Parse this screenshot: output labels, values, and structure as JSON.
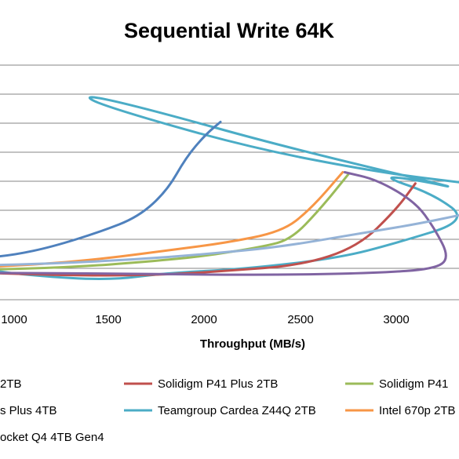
{
  "chart_data": {
    "type": "line",
    "title": "Sequential Write 64K",
    "xlabel": "Throughput (MB/s)",
    "ylabel": "",
    "x_ticks": [
      1000,
      1500,
      2000,
      2500,
      3000
    ],
    "xlim": [
      830,
      3380
    ],
    "ylim": [
      0,
      600
    ],
    "gridlines_y": [
      100,
      200,
      300,
      400,
      500
    ],
    "grid": true,
    "legend_position": "bottom",
    "series": [
      {
        "name": "Teamgroup Cardea Z44Q 2TB",
        "color": "#4bacc6",
        "points": [
          [
            830,
            40
          ],
          [
            1100,
            22
          ],
          [
            1500,
            10
          ],
          [
            1800,
            30
          ],
          [
            2200,
            40
          ],
          [
            2700,
            70
          ],
          [
            3000,
            110
          ],
          [
            3380,
            170
          ],
          [
            3200,
            240
          ],
          [
            2920,
            290
          ],
          [
            3100,
            280
          ],
          [
            3380,
            250
          ],
          [
            2400,
            370
          ],
          [
            1700,
            470
          ],
          [
            1360,
            510
          ],
          [
            1450,
            480
          ],
          [
            2200,
            370
          ],
          [
            2900,
            300
          ],
          [
            3380,
            270
          ]
        ]
      },
      {
        "name": "Solidigm P41 Plus 2TB",
        "color": "#c0504d",
        "points": [
          [
            830,
            30
          ],
          [
            1400,
            22
          ],
          [
            1800,
            25
          ],
          [
            2100,
            35
          ],
          [
            2500,
            50
          ],
          [
            2800,
            100
          ],
          [
            3000,
            200
          ],
          [
            3100,
            270
          ]
        ]
      },
      {
        "name": "Solidigm P41",
        "color": "#9bbb59",
        "points": [
          [
            830,
            38
          ],
          [
            1300,
            45
          ],
          [
            1700,
            60
          ],
          [
            2000,
            75
          ],
          [
            2300,
            100
          ],
          [
            2450,
            120
          ],
          [
            2600,
            200
          ],
          [
            2750,
            295
          ]
        ]
      },
      {
        "name": "Intel 670p 2TB",
        "color": "#f79646",
        "points": [
          [
            830,
            45
          ],
          [
            1200,
            55
          ],
          [
            1500,
            70
          ],
          [
            1800,
            90
          ],
          [
            2100,
            110
          ],
          [
            2400,
            140
          ],
          [
            2550,
            200
          ],
          [
            2720,
            300
          ]
        ]
      },
      {
        "name": "",
        "color": "#4f81bd",
        "points": [
          [
            830,
            70
          ],
          [
            1000,
            78
          ],
          [
            1200,
            100
          ],
          [
            1450,
            140
          ],
          [
            1650,
            180
          ],
          [
            1800,
            250
          ],
          [
            1900,
            340
          ],
          [
            2000,
            400
          ],
          [
            2080,
            435
          ]
        ]
      },
      {
        "name": "",
        "color": "#8064a2",
        "points": [
          [
            2730,
            300
          ],
          [
            2900,
            280
          ],
          [
            3100,
            220
          ],
          [
            3200,
            150
          ],
          [
            3280,
            70
          ],
          [
            3200,
            40
          ],
          [
            2900,
            30
          ],
          [
            2500,
            25
          ],
          [
            2000,
            25
          ],
          [
            1600,
            28
          ],
          [
            830,
            30
          ]
        ]
      },
      {
        "name": "",
        "color": "#95b3d7",
        "points": [
          [
            830,
            50
          ],
          [
            1200,
            55
          ],
          [
            1600,
            65
          ],
          [
            2000,
            80
          ],
          [
            2400,
            100
          ],
          [
            2800,
            135
          ],
          [
            3100,
            160
          ],
          [
            3380,
            190
          ]
        ]
      }
    ],
    "legend_entries": [
      {
        "text": "2TB",
        "color": "#4f81bd"
      },
      {
        "text": "Solidigm P41 Plus 2TB",
        "color": "#c0504d"
      },
      {
        "text": "Solidigm P41",
        "color": "#9bbb59"
      },
      {
        "text": "s Plus 4TB",
        "color": "#8064a2"
      },
      {
        "text": "Teamgroup Cardea Z44Q 2TB",
        "color": "#4bacc6"
      },
      {
        "text": "Intel 670p 2TB",
        "color": "#f79646"
      },
      {
        "text": "ocket Q4 4TB Gen4",
        "color": "#95b3d7"
      }
    ]
  }
}
